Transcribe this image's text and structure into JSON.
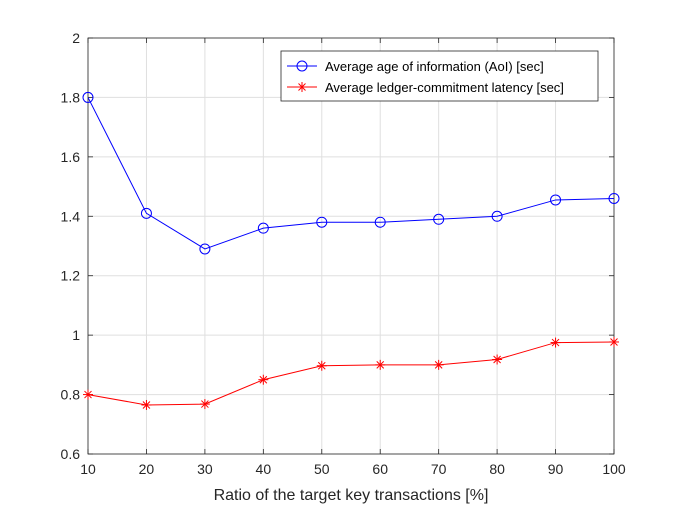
{
  "chart_data": {
    "type": "line",
    "xlabel": "Ratio of the target key transactions [%]",
    "ylabel": "",
    "title": "",
    "xlim": [
      10,
      100
    ],
    "ylim": [
      0.6,
      2
    ],
    "x_ticks": [
      10,
      20,
      30,
      40,
      50,
      60,
      70,
      80,
      90,
      100
    ],
    "y_ticks": [
      0.6,
      0.8,
      1,
      1.2,
      1.4,
      1.6,
      1.8,
      2
    ],
    "grid": true,
    "legend_position": "top-right",
    "x": [
      10,
      20,
      30,
      40,
      50,
      60,
      70,
      80,
      90,
      100
    ],
    "series": [
      {
        "name": "Average age of information (AoI) [sec]",
        "values": [
          1.8,
          1.41,
          1.29,
          1.36,
          1.38,
          1.38,
          1.39,
          1.4,
          1.455,
          1.46
        ],
        "color": "#0000ff",
        "marker": "circle"
      },
      {
        "name": "Average ledger-commitment latency [sec]",
        "values": [
          0.8,
          0.765,
          0.768,
          0.85,
          0.897,
          0.9,
          0.9,
          0.918,
          0.975,
          0.977
        ],
        "color": "#ff0000",
        "marker": "asterisk"
      }
    ]
  }
}
